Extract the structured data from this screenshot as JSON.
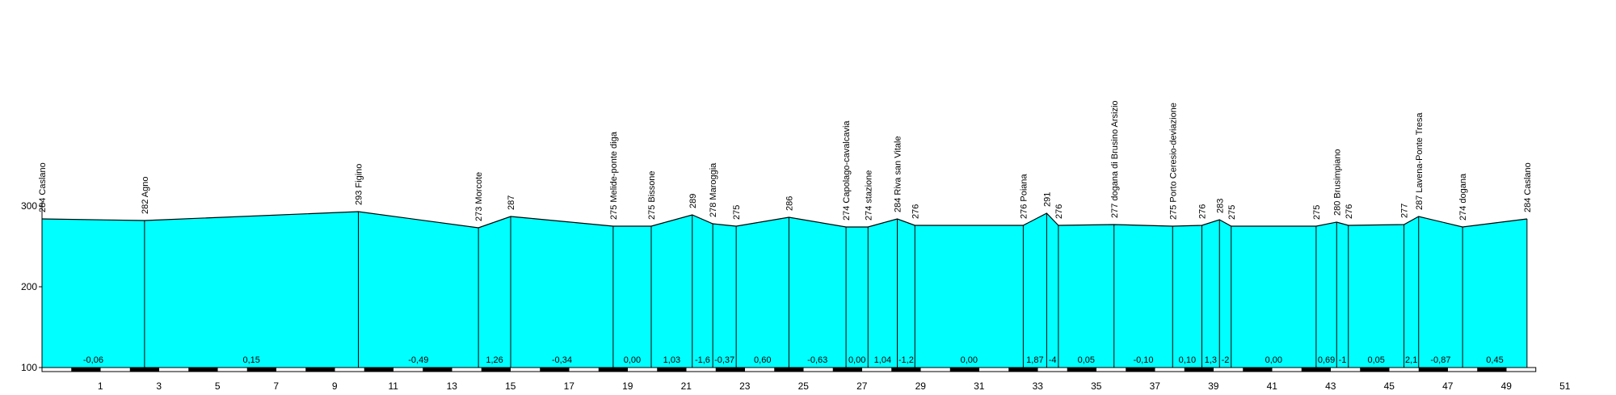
{
  "chart_data": {
    "type": "area",
    "title": "",
    "xlabel": "",
    "ylabel": "",
    "xlim": [
      0,
      51
    ],
    "ylim": [
      100,
      300
    ],
    "x_ticks": [
      1,
      3,
      5,
      7,
      9,
      11,
      13,
      15,
      17,
      19,
      21,
      23,
      25,
      27,
      29,
      31,
      33,
      35,
      37,
      39,
      41,
      43,
      45,
      47,
      49,
      51
    ],
    "y_ticks": [
      100,
      200,
      300
    ],
    "fill_color": "#00ffff",
    "line_color": "#000000",
    "points": [
      {
        "km": 0.0,
        "alt": 284,
        "label": "284 Caslano"
      },
      {
        "km": 3.5,
        "alt": 282,
        "label": "282 Agno"
      },
      {
        "km": 10.8,
        "alt": 293,
        "label": "293 Figino"
      },
      {
        "km": 14.9,
        "alt": 273,
        "label": "273 Morcote"
      },
      {
        "km": 16.0,
        "alt": 287,
        "label": "287"
      },
      {
        "km": 19.5,
        "alt": 275,
        "label": "275 Melide-ponte diga"
      },
      {
        "km": 20.8,
        "alt": 275,
        "label": "275 Bissone"
      },
      {
        "km": 22.2,
        "alt": 289,
        "label": "289"
      },
      {
        "km": 22.9,
        "alt": 278,
        "label": "278 Maroggia"
      },
      {
        "km": 23.7,
        "alt": 275,
        "label": "275"
      },
      {
        "km": 25.5,
        "alt": 286,
        "label": "286"
      },
      {
        "km": 27.45,
        "alt": 274,
        "label": "274 Capolago-cavalcavia"
      },
      {
        "km": 28.2,
        "alt": 274,
        "label": "274 stazione"
      },
      {
        "km": 29.2,
        "alt": 284,
        "label": "284 Riva san Vitale"
      },
      {
        "km": 29.8,
        "alt": 276,
        "label": "276"
      },
      {
        "km": 33.5,
        "alt": 276,
        "label": "276 Poiana"
      },
      {
        "km": 34.3,
        "alt": 291,
        "label": "291"
      },
      {
        "km": 34.7,
        "alt": 276,
        "label": "276"
      },
      {
        "km": 36.6,
        "alt": 277,
        "label": "277 dogana di Brusino Arsizio"
      },
      {
        "km": 38.6,
        "alt": 275,
        "label": "275 Porto Ceresio-deviazione"
      },
      {
        "km": 39.6,
        "alt": 276,
        "label": "276"
      },
      {
        "km": 40.2,
        "alt": 283,
        "label": "283"
      },
      {
        "km": 40.6,
        "alt": 275,
        "label": "275"
      },
      {
        "km": 43.5,
        "alt": 275,
        "label": "275"
      },
      {
        "km": 44.2,
        "alt": 280,
        "label": "280 Brusimpiano"
      },
      {
        "km": 44.6,
        "alt": 276,
        "label": "276"
      },
      {
        "km": 46.5,
        "alt": 277,
        "label": "277"
      },
      {
        "km": 47.0,
        "alt": 287,
        "label": "287 Lavena-Ponte Tresa"
      },
      {
        "km": 48.5,
        "alt": 274,
        "label": "274 dogana"
      },
      {
        "km": 50.7,
        "alt": 284,
        "label": "284 Caslano"
      }
    ],
    "gradients": [
      "-0,06",
      "0,15",
      "-0,49",
      "1,26",
      "-0,34",
      "0,00",
      "1,03",
      "-1,6",
      "-0,37",
      "0,60",
      "-0,63",
      "0,00",
      "1,04",
      "-1,2",
      "0,00",
      "1,87",
      "-4",
      "0,05",
      "-0,10",
      "0,10",
      "1,3",
      "-2",
      "0,00",
      "0,69",
      "-1",
      "0,05",
      "2,1",
      "-0,87",
      "0,45"
    ]
  }
}
